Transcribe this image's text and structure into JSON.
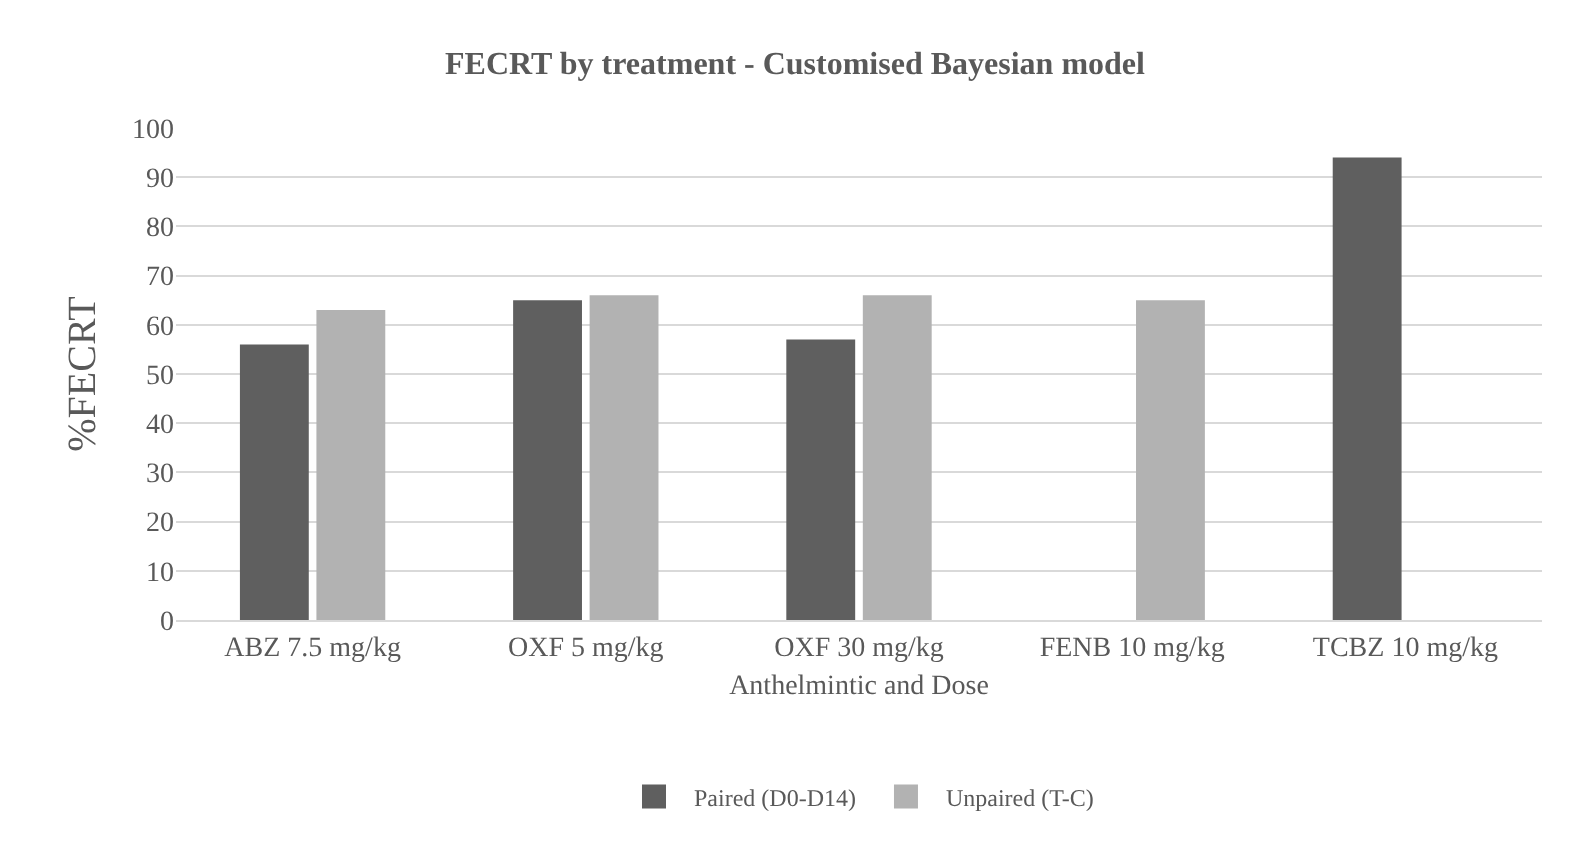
{
  "chart_data": {
    "type": "bar",
    "title": "FECRT by treatment - Customised Bayesian model",
    "xlabel": "Anthelmintic and Dose",
    "ylabel": "%FECRT",
    "categories": [
      "ABZ 7.5 mg/kg",
      "OXF 5 mg/kg",
      "OXF 30 mg/kg",
      "FENB 10 mg/kg",
      "TCBZ 10 mg/kg"
    ],
    "series": [
      {
        "name": "Paired (D0-D14)",
        "color": "#5f5f5f",
        "values": [
          56,
          65,
          57,
          null,
          94
        ]
      },
      {
        "name": "Unpaired (T-C)",
        "color": "#b2b2b2",
        "values": [
          63,
          66,
          66,
          65,
          null
        ]
      }
    ],
    "ylim": [
      0,
      100
    ],
    "yticks": [
      0,
      10,
      20,
      30,
      40,
      50,
      60,
      70,
      80,
      90,
      100
    ],
    "grid": "y",
    "legend": "bottom"
  }
}
